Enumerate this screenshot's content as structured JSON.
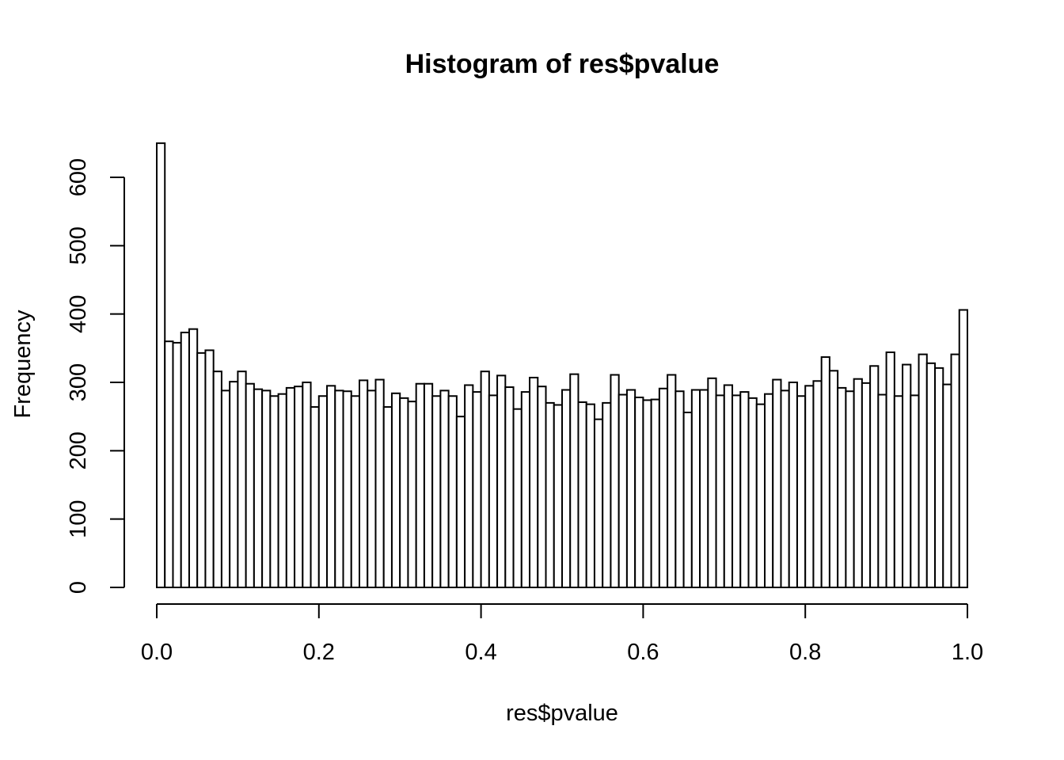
{
  "chart_data": {
    "type": "bar",
    "title": "Histogram of res$pvalue",
    "xlabel": "res$pvalue",
    "ylabel": "Frequency",
    "bin_width": 0.01,
    "xlim": [
      0,
      1
    ],
    "ylim": [
      0,
      650
    ],
    "x_ticks": [
      "0.0",
      "0.2",
      "0.4",
      "0.6",
      "0.8",
      "1.0"
    ],
    "y_ticks": [
      "0",
      "100",
      "200",
      "300",
      "400",
      "500",
      "600"
    ],
    "grid": false,
    "colors": {
      "bar_fill": "#ffffff",
      "bar_stroke": "#000000"
    },
    "values": [
      650,
      360,
      358,
      373,
      378,
      343,
      347,
      316,
      288,
      301,
      316,
      298,
      290,
      288,
      280,
      283,
      292,
      294,
      300,
      264,
      280,
      295,
      288,
      287,
      280,
      303,
      288,
      304,
      264,
      284,
      277,
      272,
      298,
      298,
      280,
      288,
      280,
      250,
      296,
      286,
      316,
      281,
      310,
      293,
      261,
      286,
      307,
      294,
      270,
      267,
      289,
      312,
      271,
      268,
      246,
      270,
      311,
      282,
      289,
      278,
      274,
      275,
      291,
      311,
      287,
      256,
      289,
      289,
      306,
      281,
      296,
      281,
      286,
      277,
      268,
      283,
      304,
      288,
      300,
      280,
      295,
      302,
      337,
      317,
      292,
      287,
      305,
      299,
      324,
      282,
      344,
      280,
      326,
      281,
      341,
      328,
      321,
      297,
      341,
      406
    ]
  }
}
